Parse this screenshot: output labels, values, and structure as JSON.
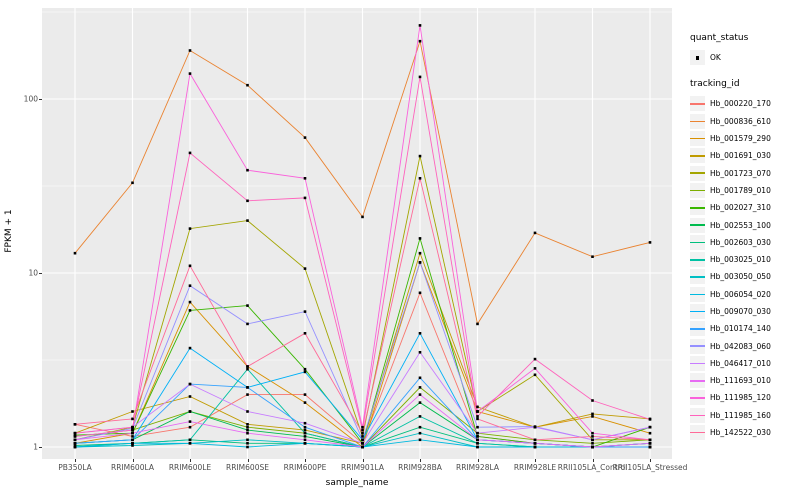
{
  "chart": {
    "y_axis": {
      "label": "FPKM + 1",
      "tick_labels": [
        "100",
        "10",
        "1"
      ]
    },
    "x_axis": {
      "label": "sample_name"
    },
    "legend": {
      "quant_status": {
        "title": "quant_status",
        "items": [
          {
            "label": "OK"
          }
        ]
      },
      "tracking_id": {
        "title": "tracking_id"
      }
    },
    "colors": {
      "panel_background": "#EBEBEB",
      "gridline": "#FFFFFF",
      "point": "#000000",
      "tick_text": "#4D4D4D"
    }
  },
  "chart_data": {
    "type": "line",
    "title": "",
    "xlabel": "sample_name",
    "ylabel": "FPKM + 1",
    "y_scale": "log10",
    "ylim": [
      1,
      300
    ],
    "y_major_ticks": [
      1,
      10,
      100
    ],
    "y_minor_ticks": [
      3.162,
      31.62,
      316.2
    ],
    "grid": true,
    "legend_position": "right",
    "point_shape": "filled-square",
    "quant_status": "OK",
    "categories": [
      "PB350LA",
      "RRIM600LA",
      "RRIM600LE",
      "RRIM600SE",
      "RRIM600PE",
      "RRIM901LA",
      "RRIM928BA",
      "RRIM928LA",
      "RRIM928LE",
      "RRII105LA_Control",
      "RRII105LA_Stressed"
    ],
    "series": [
      {
        "name": "Hb_000220_170",
        "color": "#F8766D",
        "values": [
          1.35,
          1.15,
          1.3,
          2.0,
          2.0,
          1.05,
          7.7,
          1.15,
          1.05,
          1.0,
          1.05
        ]
      },
      {
        "name": "Hb_000836_610",
        "color": "#EA8331",
        "values": [
          13,
          33,
          190,
          120,
          60,
          21,
          215,
          5.1,
          17,
          12.4,
          15
        ]
      },
      {
        "name": "Hb_001579_290",
        "color": "#D89000",
        "values": [
          1.05,
          1.2,
          6.8,
          2.9,
          1.8,
          1.0,
          11.5,
          1.6,
          1.3,
          1.5,
          1.2
        ]
      },
      {
        "name": "Hb_001691_030",
        "color": "#C09B00",
        "values": [
          1.2,
          1.6,
          1.95,
          1.35,
          1.25,
          1.05,
          13,
          1.7,
          1.3,
          1.55,
          1.45
        ]
      },
      {
        "name": "Hb_001723_070",
        "color": "#A3A500",
        "values": [
          1.1,
          1.3,
          18,
          20,
          10.6,
          1.15,
          47,
          1.6,
          2.6,
          1.1,
          1.1
        ]
      },
      {
        "name": "Hb_001789_010",
        "color": "#7CAE00",
        "values": [
          1.15,
          1.25,
          1.6,
          1.3,
          1.2,
          1.0,
          2.2,
          1.2,
          1.1,
          1.05,
          1.1
        ]
      },
      {
        "name": "Hb_002027_310",
        "color": "#39B600",
        "values": [
          1.17,
          1.2,
          6.1,
          6.5,
          2.8,
          1.05,
          15.8,
          1.15,
          1.05,
          1.0,
          1.3
        ]
      },
      {
        "name": "Hb_002553_100",
        "color": "#00BB4E",
        "values": [
          1.05,
          1.1,
          1.6,
          1.25,
          1.15,
          1.0,
          1.8,
          1.1,
          1.05,
          1.0,
          1.05
        ]
      },
      {
        "name": "Hb_002603_030",
        "color": "#00BF7D",
        "values": [
          1.02,
          1.05,
          1.1,
          1.05,
          1.05,
          1.0,
          1.3,
          1.05,
          1.0,
          1.0,
          1.0
        ]
      },
      {
        "name": "Hb_003025_010",
        "color": "#00C1A3",
        "values": [
          1.0,
          1.05,
          1.1,
          2.8,
          1.2,
          1.0,
          1.5,
          1.05,
          1.0,
          1.0,
          1.0
        ]
      },
      {
        "name": "Hb_003050_050",
        "color": "#00BFC4",
        "values": [
          1.0,
          1.02,
          1.05,
          1.1,
          1.05,
          1.0,
          1.2,
          1.0,
          1.0,
          1.0,
          1.0
        ]
      },
      {
        "name": "Hb_006054_020",
        "color": "#00BAE0",
        "values": [
          1.0,
          1.05,
          1.05,
          1.0,
          1.05,
          1.0,
          1.1,
          1.0,
          1.0,
          1.0,
          1.0
        ]
      },
      {
        "name": "Hb_009070_030",
        "color": "#00B0F6",
        "values": [
          1.05,
          1.1,
          3.7,
          2.2,
          2.7,
          1.1,
          4.5,
          1.1,
          1.05,
          1.0,
          1.05
        ]
      },
      {
        "name": "Hb_010174_140",
        "color": "#35A2FF",
        "values": [
          1.05,
          1.1,
          2.3,
          2.2,
          1.3,
          1.0,
          2.5,
          1.1,
          1.05,
          1.0,
          1.0
        ]
      },
      {
        "name": "Hb_042083_060",
        "color": "#9590FF",
        "values": [
          1.1,
          1.28,
          8.45,
          5.1,
          6.0,
          1.1,
          11.5,
          1.3,
          1.31,
          1.1,
          1.3
        ]
      },
      {
        "name": "Hb_046417_010",
        "color": "#C77CFF",
        "values": [
          1.2,
          1.3,
          2.3,
          1.6,
          1.37,
          1.05,
          3.5,
          1.2,
          1.3,
          1.1,
          1.3
        ]
      },
      {
        "name": "Hb_111693_010",
        "color": "#E76BF3",
        "values": [
          1.1,
          1.2,
          1.4,
          1.2,
          1.1,
          1.0,
          2.0,
          1.1,
          1.05,
          1.0,
          1.05
        ]
      },
      {
        "name": "Hb_111985_120",
        "color": "#FA62DB",
        "values": [
          1.15,
          1.25,
          140,
          39,
          35,
          1.3,
          265,
          1.6,
          2.83,
          1.2,
          1.1
        ]
      },
      {
        "name": "Hb_111985_160",
        "color": "#FF62BC",
        "values": [
          1.2,
          1.3,
          49,
          26,
          27,
          1.25,
          134,
          1.5,
          3.2,
          1.85,
          1.44
        ]
      },
      {
        "name": "Hb_142522_030",
        "color": "#FF6A98",
        "values": [
          1.35,
          1.45,
          11,
          2.9,
          4.5,
          1.2,
          35,
          1.45,
          1.1,
          1.15,
          1.1
        ]
      }
    ]
  }
}
